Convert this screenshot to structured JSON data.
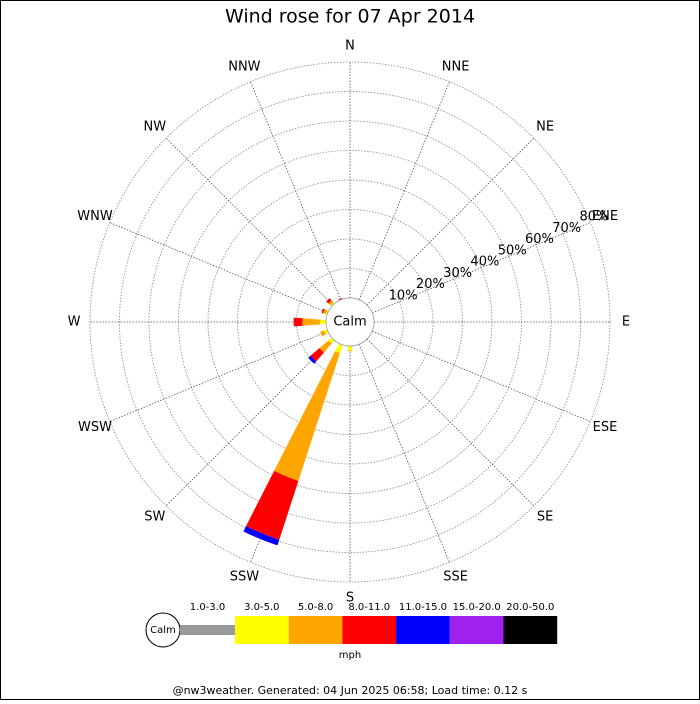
{
  "chart_data": {
    "type": "windrose",
    "title": "Wind rose for 07 Apr 2014",
    "categories": [
      "N",
      "NNE",
      "NE",
      "ENE",
      "E",
      "ESE",
      "SE",
      "SSE",
      "S",
      "SSW",
      "SW",
      "WSW",
      "W",
      "WNW",
      "NW",
      "NNW"
    ],
    "series": [
      {
        "name": "1.0-3.0",
        "color": "#999999",
        "values": [
          0,
          0,
          0,
          0,
          0,
          0,
          0,
          0,
          0,
          0,
          0,
          0,
          0,
          0,
          0,
          0
        ]
      },
      {
        "name": "3.0-5.0",
        "color": "#ffff00",
        "values": [
          0,
          0,
          0,
          0,
          0,
          0,
          0,
          0,
          1.5,
          3,
          1.5,
          1,
          2,
          0.5,
          0.5,
          0
        ]
      },
      {
        "name": "5.0-8.0",
        "color": "#ffa500",
        "values": [
          0,
          0,
          0,
          0,
          0,
          0,
          0,
          0,
          0.3,
          45.5,
          4,
          1.5,
          6,
          1,
          1,
          0
        ]
      },
      {
        "name": "8.0-11.0",
        "color": "#ff0000",
        "values": [
          0,
          0,
          0,
          0,
          0,
          0,
          0,
          0,
          0,
          21,
          4,
          0,
          3,
          0.5,
          1,
          0.5
        ]
      },
      {
        "name": "11.0-15.0",
        "color": "#0000ff",
        "values": [
          0,
          0,
          0,
          0,
          0,
          0,
          0,
          0,
          0,
          2,
          1,
          0,
          0,
          0,
          0,
          0
        ]
      },
      {
        "name": "15.0-20.0",
        "color": "#a020f0",
        "values": [
          0,
          0,
          0,
          0,
          0,
          0,
          0,
          0,
          0,
          0,
          0,
          0,
          0,
          0,
          0,
          0
        ]
      },
      {
        "name": "20.0-50.0",
        "color": "#000000",
        "values": [
          0,
          0,
          0,
          0,
          0,
          0,
          0,
          0,
          0,
          0,
          0,
          0,
          0,
          0,
          0,
          0
        ]
      }
    ],
    "rlim": [
      0,
      80
    ],
    "rticks": [
      {
        "value": 10,
        "label": "10%"
      },
      {
        "value": 20,
        "label": "20%"
      },
      {
        "value": 30,
        "label": "30%"
      },
      {
        "value": 40,
        "label": "40%"
      },
      {
        "value": 50,
        "label": "50%"
      },
      {
        "value": 60,
        "label": "60%"
      },
      {
        "value": 70,
        "label": "70%"
      },
      {
        "value": 80,
        "label": "80%"
      }
    ],
    "calm_label": "Calm",
    "legend_unit": "mph",
    "footer": "@nw3weather. Generated: 04 Jun 2025 06:58; Load time: 0.12 s"
  }
}
